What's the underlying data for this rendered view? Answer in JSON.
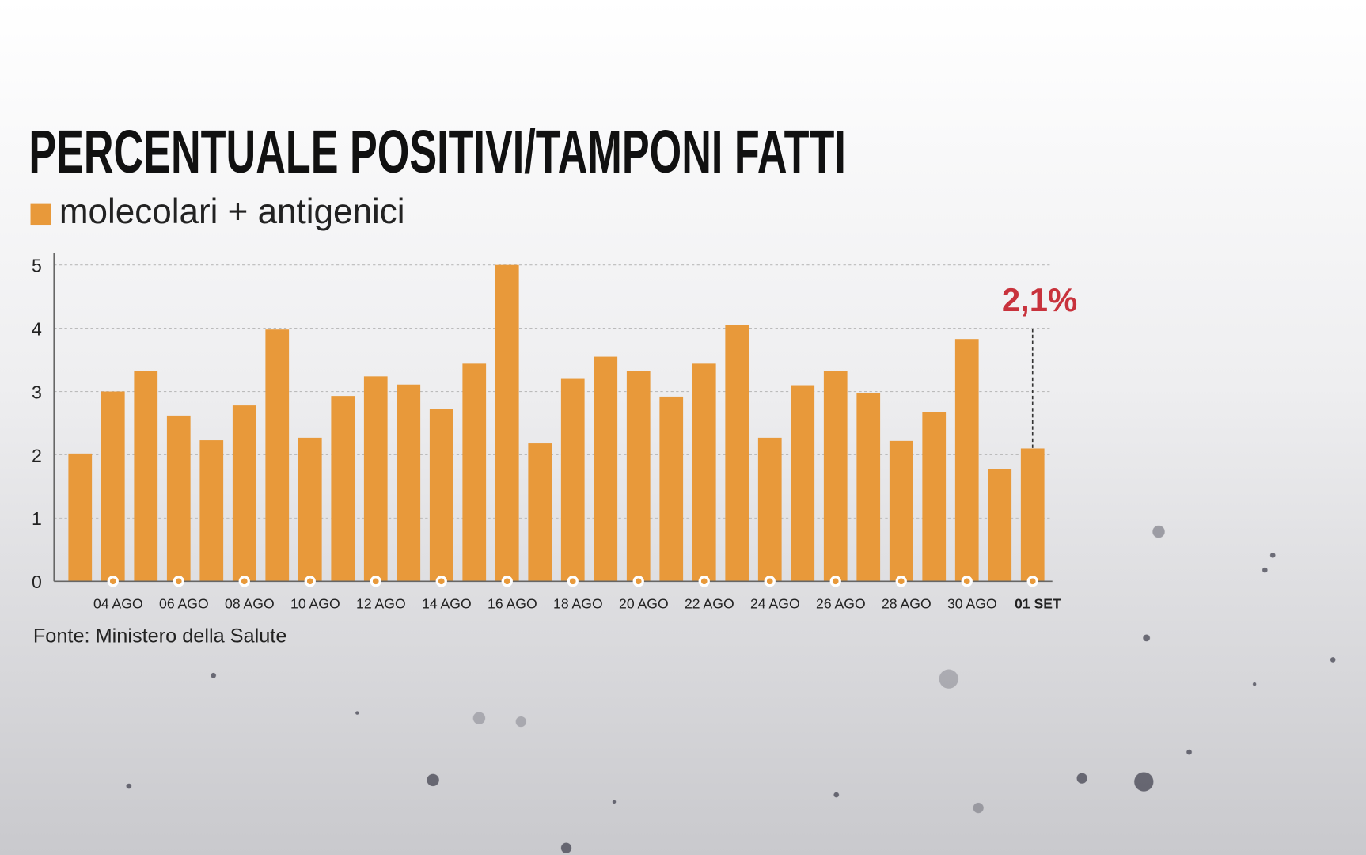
{
  "chart_data": {
    "type": "bar",
    "title": "PERCENTUALE POSITIVI/TAMPONI FATTI",
    "source": "Fonte: Ministero della Salute",
    "categories": [
      null,
      "04 AGO",
      null,
      "06 AGO",
      null,
      "08 AGO",
      null,
      "10 AGO",
      null,
      "12 AGO",
      null,
      "14 AGO",
      null,
      "16 AGO",
      null,
      "18 AGO",
      null,
      "20 AGO",
      null,
      "22 AGO",
      null,
      "24 AGO",
      null,
      "26 AGO",
      null,
      "28 AGO",
      null,
      "30 AGO",
      null,
      "01 SET"
    ],
    "series": [
      {
        "name": "molecolari + antigenici",
        "color": "#e8993a",
        "values": [
          2.02,
          3.0,
          3.33,
          2.62,
          2.23,
          2.78,
          3.98,
          2.27,
          2.93,
          3.24,
          3.11,
          2.73,
          3.44,
          5.0,
          2.18,
          3.2,
          3.55,
          3.32,
          2.92,
          3.44,
          4.05,
          2.27,
          3.1,
          3.32,
          2.98,
          2.22,
          2.67,
          3.83,
          1.78,
          2.1
        ]
      }
    ],
    "annotation": {
      "text": "2,1%",
      "value": 2.1,
      "color": "#c8323c"
    },
    "ylim": [
      0,
      5
    ],
    "yticks": [
      0,
      1,
      2,
      3,
      4,
      5
    ],
    "grid": true
  }
}
